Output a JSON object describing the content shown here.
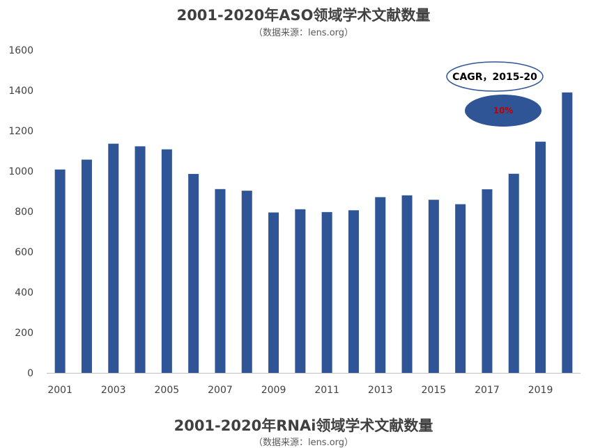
{
  "chart_data": {
    "type": "bar",
    "title": "2001-2020年ASO领域学术文献数量",
    "subtitle": "（数据来源：lens.org）",
    "categories": [
      "2001",
      "2002",
      "2003",
      "2004",
      "2005",
      "2006",
      "2007",
      "2008",
      "2009",
      "2010",
      "2011",
      "2012",
      "2013",
      "2014",
      "2015",
      "2016",
      "2017",
      "2018",
      "2019",
      "2020"
    ],
    "x_tick_labels": [
      "2001",
      "2003",
      "2005",
      "2007",
      "2009",
      "2011",
      "2013",
      "2015",
      "2017",
      "2019"
    ],
    "values": [
      1008,
      1057,
      1136,
      1123,
      1108,
      986,
      911,
      903,
      795,
      811,
      797,
      806,
      871,
      880,
      858,
      836,
      910,
      987,
      1146,
      1390
    ],
    "ylim": [
      0,
      1600
    ],
    "yticks": [
      0,
      200,
      400,
      600,
      800,
      1000,
      1200,
      1400,
      1600
    ],
    "grid": false,
    "bar_color": "#2F5597",
    "annotations": {
      "cagr_label": "CAGR，2015-20",
      "cagr_value": "10%",
      "cagr_value_color": "#C00000"
    }
  },
  "second_chart": {
    "title": "2001-2020年RNAi领域学术文献数量",
    "subtitle": "（数据来源：lens.org）"
  }
}
